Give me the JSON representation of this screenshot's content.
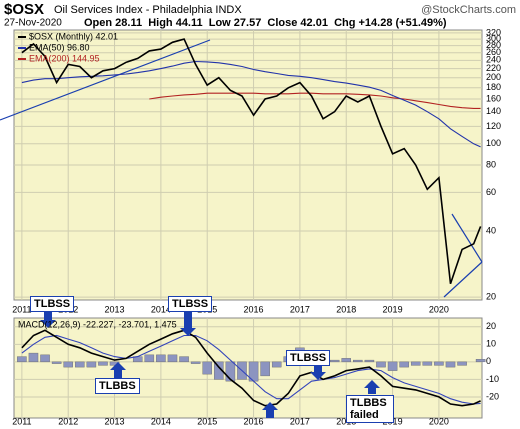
{
  "chart_data": {
    "type": "line",
    "symbol": "$OSX",
    "title": "Oil Services Index - Philadelphia INDX",
    "source": "@StockCharts.com",
    "date": "27-Nov-2020",
    "quote": "Open 28.11  High 44.11  Low 27.57  Close 42.01  Chg +14.28 (+51.49%)",
    "log_scale": true,
    "grid": true,
    "x": [
      2011,
      2011.25,
      2011.5,
      2011.75,
      2012,
      2012.25,
      2012.5,
      2012.75,
      2013,
      2013.25,
      2013.5,
      2013.75,
      2014,
      2014.25,
      2014.5,
      2014.75,
      2015,
      2015.25,
      2015.5,
      2015.75,
      2016,
      2016.25,
      2016.5,
      2016.75,
      2017,
      2017.25,
      2017.5,
      2017.75,
      2018,
      2018.25,
      2018.5,
      2018.75,
      2019,
      2019.25,
      2019.5,
      2019.75,
      2020,
      2020.25,
      2020.5,
      2020.75,
      2020.9
    ],
    "xlim": [
      2010.83,
      2020.93
    ],
    "xticks": [
      2011,
      2012,
      2013,
      2014,
      2015,
      2016,
      2017,
      2018,
      2019,
      2020
    ],
    "ylim": [
      19.4,
      330
    ],
    "yticks": [
      320,
      300,
      280,
      260,
      240,
      220,
      200,
      180,
      160,
      140,
      120,
      100,
      80,
      60,
      40,
      20
    ],
    "series": [
      {
        "name": "$OSX (Monthly) 42.01",
        "color": "#000000",
        "values": [
          260,
          285,
          250,
          190,
          230,
          225,
          200,
          215,
          220,
          235,
          245,
          265,
          270,
          290,
          300,
          230,
          185,
          200,
          175,
          165,
          135,
          160,
          165,
          180,
          190,
          165,
          130,
          140,
          165,
          155,
          165,
          120,
          90,
          95,
          80,
          62,
          70,
          23,
          33,
          35,
          42.01
        ]
      },
      {
        "name": "EMA(50) 96.80",
        "color": "#2233aa",
        "values": [
          190,
          195,
          198,
          198,
          200,
          202,
          203,
          204,
          206,
          208,
          211,
          215,
          220,
          226,
          233,
          237,
          236,
          234,
          230,
          225,
          218,
          213,
          209,
          205,
          203,
          200,
          196,
          192,
          189,
          185,
          181,
          175,
          166,
          158,
          150,
          140,
          130,
          117,
          108,
          100,
          96.8
        ]
      },
      {
        "name": "EMA(200) 144.95",
        "color": "#b22222",
        "values": [
          null,
          null,
          null,
          null,
          null,
          null,
          null,
          null,
          null,
          null,
          null,
          160,
          163,
          165,
          167,
          168,
          170,
          170,
          170,
          170,
          170,
          169,
          169,
          169,
          170,
          170,
          169,
          169,
          169,
          168,
          167,
          165,
          162,
          160,
          157,
          154,
          151,
          148,
          146,
          145,
          144.95
        ]
      }
    ],
    "macd": {
      "type": "line",
      "label": "MACD(12,26,9) -22.227, -23.701, 1.475",
      "ylim": [
        -32,
        25
      ],
      "yticks": [
        20,
        10,
        0,
        -10,
        -20
      ],
      "series": [
        {
          "name": "MACD",
          "color": "#000000",
          "values": [
            8,
            15,
            18,
            14,
            10,
            8,
            5,
            3,
            1,
            2,
            6,
            10,
            13,
            16,
            18,
            14,
            5,
            -3,
            -10,
            -15,
            -22,
            -25,
            -24,
            -18,
            -8,
            -6,
            -10,
            -8,
            -5,
            -4,
            -3,
            -8,
            -14,
            -15,
            -16,
            -18,
            -20,
            -24,
            -25,
            -24,
            -22.227
          ]
        },
        {
          "name": "Signal",
          "color": "#3344bb",
          "values": [
            5,
            10,
            14,
            15,
            13,
            11,
            8,
            5,
            3,
            2,
            3,
            6,
            9,
            12,
            15,
            15,
            12,
            7,
            1,
            -5,
            -11,
            -17,
            -21,
            -21,
            -16,
            -11,
            -10,
            -9,
            -7,
            -5,
            -4,
            -5,
            -9,
            -12,
            -14,
            -16,
            -18,
            -21,
            -23,
            -24,
            -23.701
          ]
        },
        {
          "name": "Histogram",
          "color": "#8c94c0",
          "values": [
            3,
            5,
            4,
            -1,
            -3,
            -3,
            -3,
            -2,
            -2,
            0,
            3,
            4,
            4,
            4,
            3,
            -1,
            -7,
            -10,
            -11,
            -10,
            -11,
            -8,
            -3,
            3,
            8,
            5,
            0,
            1,
            2,
            1,
            1,
            -3,
            -5,
            -3,
            -2,
            -2,
            -2,
            -3,
            -2,
            0,
            1.475
          ]
        }
      ]
    },
    "annotations": [
      "TLBSS",
      "TLBSS",
      "TLBBS",
      "TLBSS",
      "TLBBS failed"
    ]
  }
}
